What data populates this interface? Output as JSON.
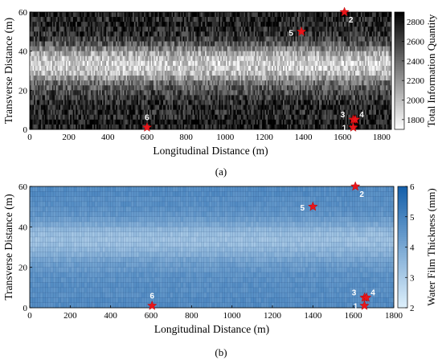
{
  "chart_data": [
    {
      "type": "heatmap",
      "caption": "(a)",
      "xlabel": "Longitudinal Distance (m)",
      "ylabel": "Transverse  Distance (m)",
      "xlim": [
        0,
        1850
      ],
      "ylim": [
        0,
        60
      ],
      "xticks": [
        "0",
        "200",
        "400",
        "600",
        "800",
        "1000",
        "1200",
        "1400",
        "1600",
        "1800"
      ],
      "yticks": [
        "0",
        "20",
        "40",
        "60"
      ],
      "colorbar": {
        "label": "Total Information Quantity",
        "range": [
          1700,
          2900
        ],
        "ticks": [
          "1800",
          "2000",
          "2200",
          "2400",
          "2600",
          "2800"
        ],
        "colormap": "gray"
      },
      "band_means": [
        2750,
        2780,
        2720,
        2700,
        2740,
        2680,
        2620,
        2560,
        2480,
        2380,
        2180,
        2020,
        1950,
        1920,
        1980,
        2100,
        2300,
        2480,
        2600,
        2680,
        2700,
        2740,
        2720,
        2760
      ],
      "markers": [
        {
          "label": "1",
          "x": 1655,
          "y": 1
        },
        {
          "label": "2",
          "x": 1610,
          "y": 60
        },
        {
          "label": "3",
          "x": 1655,
          "y": 5
        },
        {
          "label": "4",
          "x": 1665,
          "y": 5
        },
        {
          "label": "5",
          "x": 1390,
          "y": 50
        },
        {
          "label": "6",
          "x": 600,
          "y": 1
        }
      ]
    },
    {
      "type": "heatmap",
      "caption": "(b)",
      "xlabel": "Longitudinal Distance (m)",
      "ylabel": "Transverse  Distance (m)",
      "xlim": [
        0,
        1800
      ],
      "ylim": [
        0,
        60
      ],
      "xticks": [
        "0",
        "200",
        "400",
        "600",
        "800",
        "1000",
        "1200",
        "1400",
        "1600",
        "1800"
      ],
      "yticks": [
        "0",
        "20",
        "40",
        "60"
      ],
      "colorbar": {
        "label": "Water Film Thickness (mm)",
        "range": [
          2,
          6
        ],
        "ticks": [
          "2",
          "3",
          "4",
          "5",
          "6"
        ],
        "colormap": "blues"
      },
      "band_means": [
        4.7,
        4.7,
        4.6,
        4.6,
        4.6,
        4.5,
        4.5,
        4.3,
        4.2,
        4.0,
        3.7,
        3.5,
        3.3,
        3.2,
        3.3,
        3.5,
        3.9,
        4.2,
        4.4,
        4.5,
        4.6,
        4.6,
        4.7,
        4.7
      ],
      "markers": [
        {
          "label": "1",
          "x": 1655,
          "y": 1
        },
        {
          "label": "2",
          "x": 1610,
          "y": 60
        },
        {
          "label": "3",
          "x": 1655,
          "y": 5
        },
        {
          "label": "4",
          "x": 1665,
          "y": 5
        },
        {
          "label": "5",
          "x": 1400,
          "y": 50
        },
        {
          "label": "6",
          "x": 605,
          "y": 1
        }
      ]
    }
  ]
}
